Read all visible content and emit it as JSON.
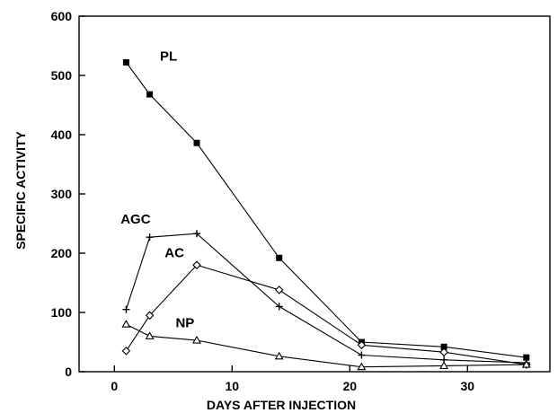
{
  "chart_data": {
    "type": "line",
    "xlabel": "DAYS AFTER INJECTION",
    "ylabel": "SPECIFIC ACTIVITY",
    "xlim": [
      -3,
      37
    ],
    "ylim": [
      0,
      600
    ],
    "xticks": [
      0,
      10,
      20,
      30
    ],
    "yticks": [
      0,
      100,
      200,
      300,
      400,
      500,
      600
    ],
    "grid": false,
    "legend": "none (series labeled directly on plot)",
    "series": [
      {
        "name": "PL",
        "marker": "filled-square",
        "x": [
          1,
          3,
          7,
          14,
          21,
          28,
          35
        ],
        "y": [
          522,
          468,
          386,
          192,
          50,
          42,
          24
        ]
      },
      {
        "name": "AGC",
        "marker": "plus",
        "x": [
          1,
          3,
          7,
          14,
          21,
          28,
          35
        ],
        "y": [
          105,
          227,
          233,
          110,
          28,
          20,
          15
        ]
      },
      {
        "name": "AC",
        "marker": "open-diamond",
        "x": [
          1,
          3,
          7,
          14,
          21,
          28,
          35
        ],
        "y": [
          35,
          95,
          180,
          138,
          45,
          33,
          12
        ]
      },
      {
        "name": "NP",
        "marker": "open-triangle",
        "x": [
          1,
          3,
          7,
          14,
          21,
          28,
          35
        ],
        "y": [
          80,
          60,
          53,
          26,
          8,
          10,
          12
        ]
      }
    ]
  }
}
